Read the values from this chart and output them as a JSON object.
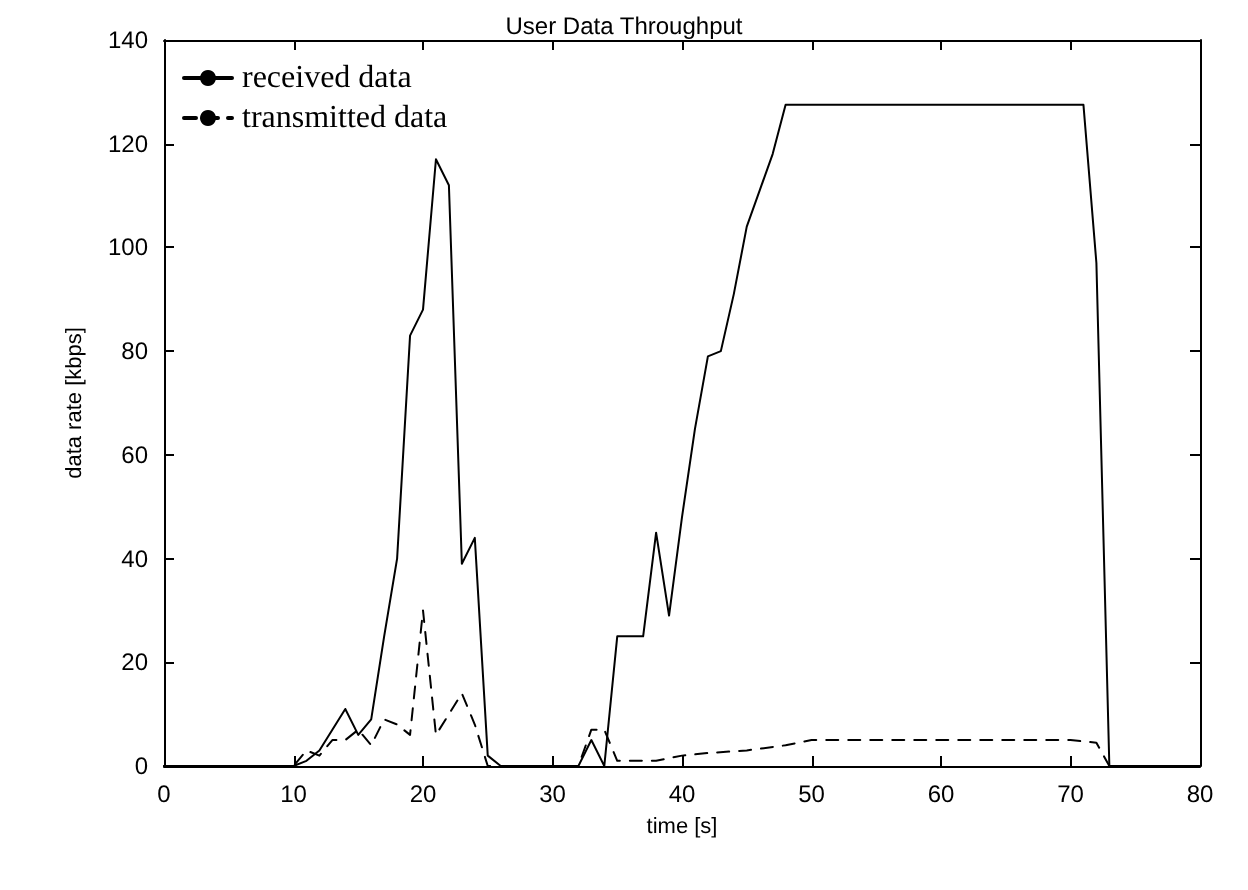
{
  "chart_data": {
    "type": "line",
    "title": "User Data Throughput",
    "xlabel": "time [s]",
    "ylabel": "data rate [kbps]",
    "xlim": [
      0,
      80
    ],
    "xticks": [
      0,
      10,
      20,
      30,
      40,
      50,
      60,
      70,
      80
    ],
    "ylim": [
      0,
      140
    ],
    "yticks": [
      0,
      20,
      40,
      60,
      80,
      100,
      120,
      140
    ],
    "grid": false,
    "legend": "top left",
    "marker": "none",
    "series": [
      {
        "name": "received data",
        "color": "#000000",
        "line_style": "solid",
        "x": [
          0,
          10,
          11,
          12,
          13,
          14,
          15,
          16,
          17,
          18,
          19,
          20,
          21,
          22,
          23,
          24,
          25,
          26,
          32,
          33,
          34,
          35,
          36,
          37,
          38,
          39,
          40,
          41,
          42,
          43,
          44,
          45,
          46,
          47,
          48,
          71,
          72,
          73,
          80
        ],
        "values": [
          0,
          0,
          1,
          3,
          7,
          11,
          6,
          9,
          25,
          40,
          83,
          88,
          117,
          112,
          39,
          44,
          2,
          0,
          0,
          5,
          0,
          25,
          25,
          25,
          45,
          29,
          48,
          65,
          79,
          80,
          91,
          104,
          111,
          118,
          127.5,
          127.5,
          97,
          0,
          0
        ]
      },
      {
        "name": "transmitted data",
        "color": "#000000",
        "line_style": "dashed",
        "x": [
          0,
          10,
          11,
          12,
          13,
          14,
          15,
          16,
          17,
          18,
          19,
          20,
          21,
          22,
          23,
          24,
          25,
          32,
          33,
          34,
          35,
          36,
          38,
          40,
          42,
          45,
          48,
          50,
          55,
          60,
          65,
          70,
          72,
          73,
          80
        ],
        "values": [
          0,
          0,
          3,
          2,
          5,
          5,
          7,
          4,
          9,
          8,
          6,
          30,
          6,
          10,
          14,
          8,
          0,
          0,
          7,
          7,
          1,
          1,
          1,
          2,
          2.5,
          3,
          4,
          5,
          5,
          5,
          5,
          5,
          4.5,
          0,
          0
        ]
      }
    ]
  }
}
